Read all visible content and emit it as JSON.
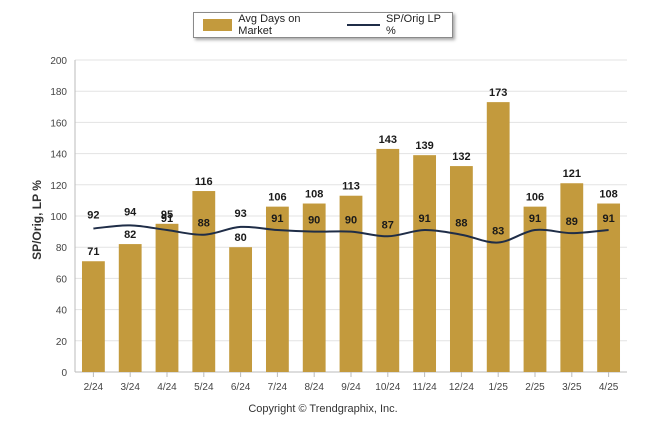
{
  "chart_data": {
    "type": "bar",
    "categories": [
      "2/24",
      "3/24",
      "4/24",
      "5/24",
      "6/24",
      "7/24",
      "8/24",
      "9/24",
      "10/24",
      "11/24",
      "12/24",
      "1/25",
      "2/25",
      "3/25",
      "4/25"
    ],
    "series": [
      {
        "name": "Avg Days on Market",
        "type": "bar",
        "color": "#c39a3d",
        "values": [
          71,
          82,
          95,
          116,
          80,
          106,
          108,
          113,
          143,
          139,
          132,
          173,
          106,
          121,
          108
        ]
      },
      {
        "name": "SP/Orig LP %",
        "type": "line",
        "color": "#1f2d47",
        "values": [
          92,
          94,
          91,
          88,
          93,
          91,
          90,
          90,
          87,
          91,
          88,
          83,
          91,
          89,
          91
        ]
      }
    ],
    "ylabel": "SP/Orig, LP %",
    "ylim": [
      0,
      200
    ],
    "yticks": [
      0,
      20,
      40,
      60,
      80,
      100,
      120,
      140,
      160,
      180,
      200
    ],
    "grid": true,
    "legend_position": "top-center"
  },
  "legend": {
    "bar_label": "Avg Days on Market",
    "line_label": "SP/Orig LP %"
  },
  "copyright": "Copyright © Trendgraphix, Inc."
}
